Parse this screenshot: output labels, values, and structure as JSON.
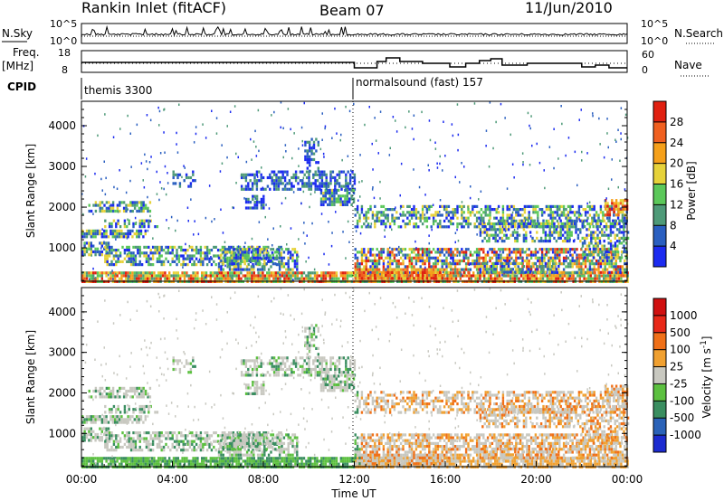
{
  "header": {
    "title": "Rankin Inlet (fitACF)",
    "beam": "Beam 07",
    "date": "11/Jun/2010"
  },
  "noise_panel": {
    "left_label": "N.Sky",
    "right_label": "N.Search",
    "left_ticks": [
      "10^5",
      "10^0"
    ],
    "right_ticks": [
      "10^5",
      "10^0"
    ]
  },
  "freq_panel": {
    "left_label_1": "Freq.",
    "left_label_2": "[MHz]",
    "left_ticks": [
      "18",
      "8"
    ],
    "right_label": "Nave",
    "right_ticks": [
      "60",
      "0"
    ]
  },
  "cpid": {
    "label": "CPID",
    "segments": [
      {
        "name": "themis 3300",
        "start_hour": 0
      },
      {
        "name": "normalsound (fast) 157",
        "start_hour": 12
      }
    ]
  },
  "chart_data": [
    {
      "type": "heatmap",
      "name": "power",
      "ylabel": "Slant Range [km]",
      "y_ticks": [
        1000,
        2000,
        3000,
        4000
      ],
      "ylim": [
        180,
        4600
      ],
      "xlim": [
        0,
        24
      ],
      "colorbar": {
        "label": "Power [dB]",
        "ticks": [
          "4",
          "8",
          "12",
          "16",
          "20",
          "24",
          "28"
        ],
        "colors": [
          "#1c2bf0",
          "#2a5fc0",
          "#4e9a78",
          "#5bc85a",
          "#e6d23a",
          "#f5a01a",
          "#f06020",
          "#e02010"
        ]
      }
    },
    {
      "type": "heatmap",
      "name": "velocity",
      "ylabel": "Slant Range [km]",
      "y_ticks": [
        1000,
        2000,
        3000,
        4000
      ],
      "ylim": [
        180,
        4600
      ],
      "xlim": [
        0,
        24
      ],
      "xlabel": "Time UT",
      "x_ticks": [
        "00:00",
        "04:00",
        "08:00",
        "12:00",
        "16:00",
        "20:00",
        "00:00"
      ],
      "colorbar": {
        "label": "Velocity [m s^-1]",
        "ticks": [
          "1000",
          "500",
          "100",
          "25",
          "-25",
          "-100",
          "-500",
          "-1000"
        ],
        "colors": [
          "#1c2bd0",
          "#2a62b8",
          "#3a8e60",
          "#5cc040",
          "#c8c8c0",
          "#f0a030",
          "#f07018",
          "#e82818",
          "#d01010"
        ]
      }
    }
  ]
}
